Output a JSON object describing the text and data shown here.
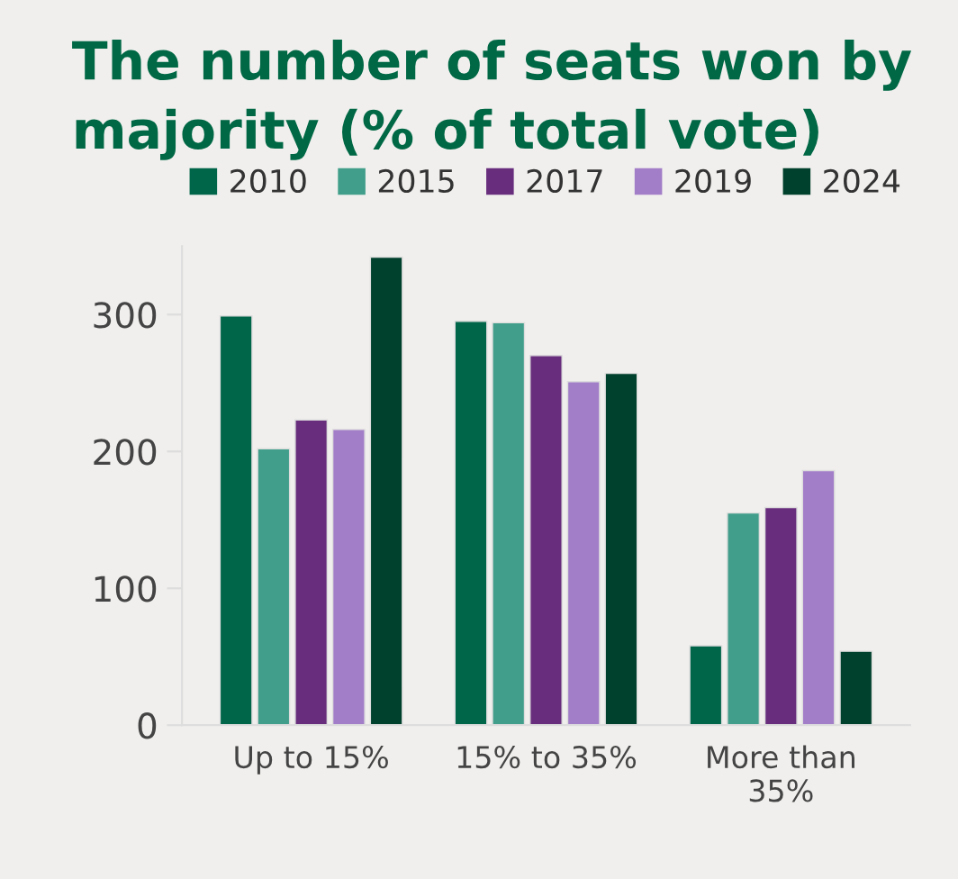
{
  "chart_data": {
    "type": "bar",
    "title": "The number of seats won by\nmajority (% of total vote)",
    "categories": [
      "Up to 15%",
      "15% to 35%",
      "More than\n35%"
    ],
    "series": [
      {
        "name": "2010",
        "color": "#00664a",
        "values": [
          299,
          295,
          58
        ]
      },
      {
        "name": "2015",
        "color": "#409e8a",
        "values": [
          202,
          294,
          155
        ]
      },
      {
        "name": "2017",
        "color": "#682e7d",
        "values": [
          223,
          270,
          159
        ]
      },
      {
        "name": "2019",
        "color": "#a37ec8",
        "values": [
          216,
          251,
          186
        ]
      },
      {
        "name": "2024",
        "color": "#00412d",
        "values": [
          342,
          257,
          54
        ]
      }
    ],
    "ylim": [
      0,
      350
    ],
    "yticks": [
      0,
      100,
      200,
      300
    ],
    "grid": false,
    "legend": "top"
  }
}
